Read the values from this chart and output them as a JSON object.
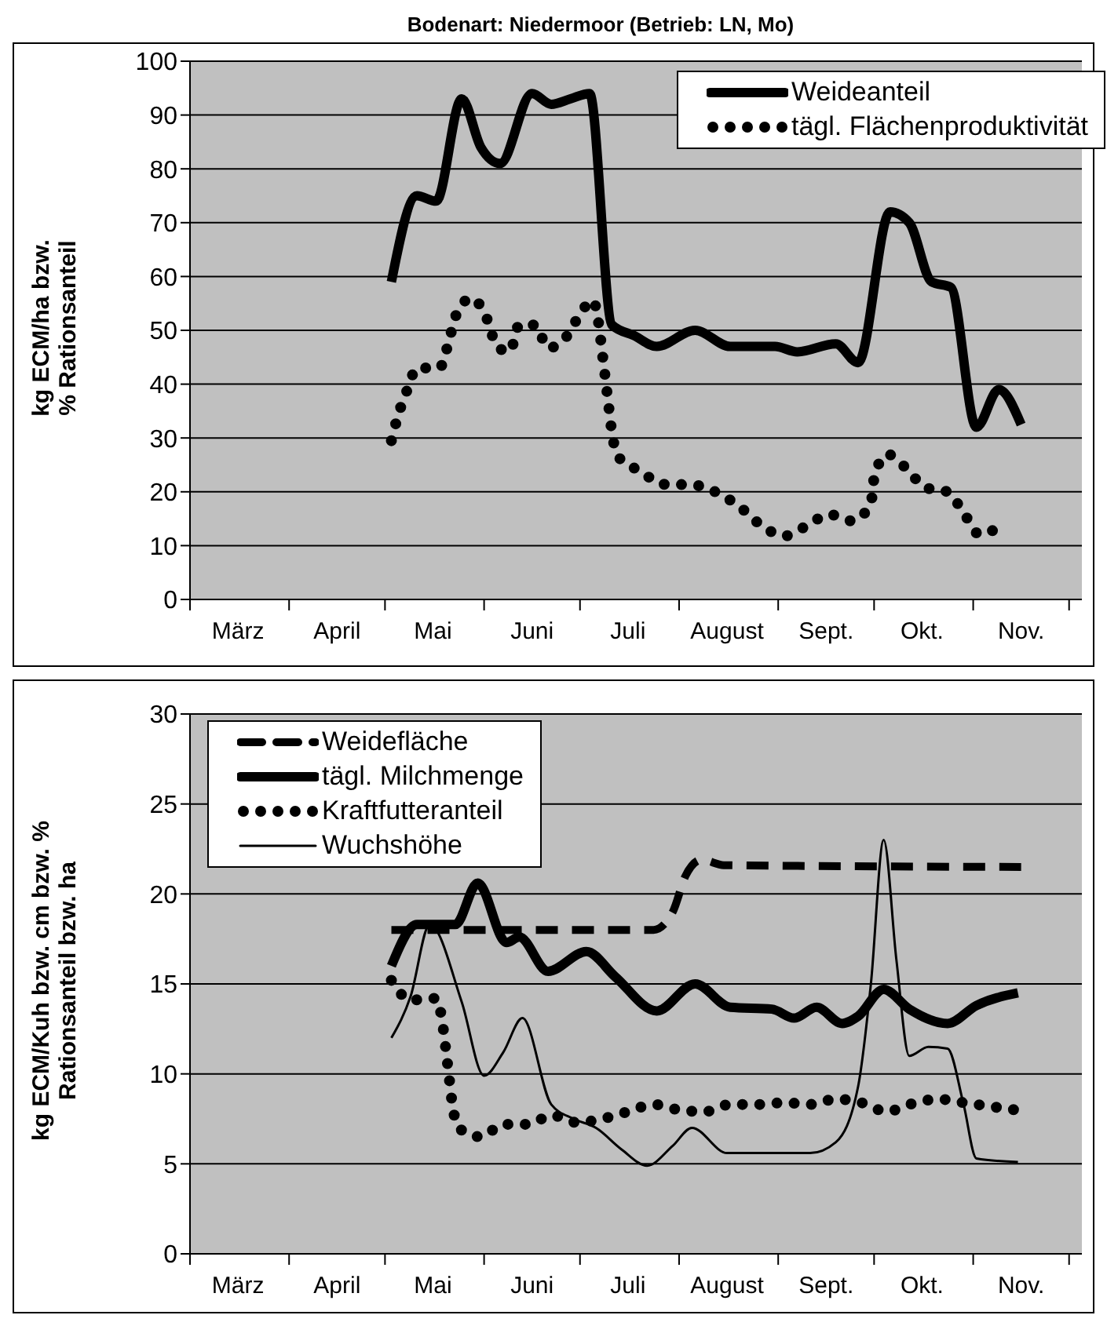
{
  "chart_data": [
    {
      "type": "line",
      "title": "Bodenart: Niedermoor (Betrieb: LN, Mo)",
      "ylabel": "kg ECM/ha bzw. % Rationsanteil",
      "xlim": [
        "--03-01",
        "--12-05"
      ],
      "xticks": [
        {
          "value": "--03-01",
          "label": null
        },
        {
          "value": "--03-16",
          "label": "März"
        },
        {
          "value": "--04-01",
          "label": null
        },
        {
          "value": "--04-16",
          "label": "April"
        },
        {
          "value": "--05-01",
          "label": null
        },
        {
          "value": "--05-16",
          "label": "Mai"
        },
        {
          "value": "--06-01",
          "label": null
        },
        {
          "value": "--06-16",
          "label": "Juni"
        },
        {
          "value": "--07-01",
          "label": null
        },
        {
          "value": "--07-16",
          "label": "Juli"
        },
        {
          "value": "--08-01",
          "label": null
        },
        {
          "value": "--08-16",
          "label": "August"
        },
        {
          "value": "--09-01",
          "label": null
        },
        {
          "value": "--09-16",
          "label": "Sept."
        },
        {
          "value": "--10-01",
          "label": null
        },
        {
          "value": "--10-16",
          "label": "Okt."
        },
        {
          "value": "--11-01",
          "label": null
        },
        {
          "value": "--11-16",
          "label": "Nov."
        },
        {
          "value": "--12-01",
          "label": null
        }
      ],
      "ylim": [
        0,
        100
      ],
      "yticks": [
        0,
        10,
        20,
        30,
        40,
        50,
        60,
        70,
        80,
        90,
        100
      ],
      "grid": "y",
      "legend": "top right",
      "series": [
        {
          "name": "Weideanteil",
          "color": "#000000",
          "line_style": "solid",
          "x": [
            "--05-03",
            "--05-11",
            "--05-17",
            "--05-25",
            "--05-31",
            "--06-06",
            "--06-16",
            "--06-22",
            "--06-28",
            "--07-04",
            "--07-11",
            "--07-18",
            "--07-25",
            "--08-06",
            "--08-17",
            "--08-31",
            "--09-07",
            "--09-19",
            "--09-26",
            "--10-06",
            "--10-12",
            "--10-19",
            "--10-25",
            "--11-02",
            "--11-09",
            "--11-16"
          ],
          "values": [
            59,
            75,
            74,
            93,
            84,
            81,
            94,
            92,
            93,
            94,
            51,
            49,
            47,
            50,
            47,
            47,
            46,
            47.5,
            44,
            72,
            70,
            59,
            58,
            32,
            39,
            32.5
          ]
        },
        {
          "name": "tägl. Flächenproduktivität",
          "color": "#000000",
          "line_style": "dotted",
          "x": [
            "--05-03",
            "--05-05",
            "--05-08",
            "--05-11",
            "--05-18",
            "--05-21",
            "--05-23",
            "--05-28",
            "--06-02",
            "--06-05",
            "--06-09",
            "--06-12",
            "--06-17",
            "--06-21",
            "--06-27",
            "--07-01",
            "--07-05",
            "--07-07",
            "--07-08",
            "--07-09",
            "--07-10",
            "--07-11",
            "--07-13",
            "--07-20",
            "--07-27",
            "--08-05",
            "--08-13",
            "--08-20",
            "--08-26",
            "--09-03",
            "--09-10",
            "--09-17",
            "--09-24",
            "--09-30",
            "--10-01",
            "--10-05",
            "--10-11",
            "--10-17",
            "--10-24",
            "--10-29",
            "--11-03",
            "--11-10"
          ],
          "values": [
            29.5,
            34,
            39,
            43,
            43,
            48,
            52.5,
            56,
            52,
            47,
            46,
            51,
            51,
            46.7,
            49,
            53,
            55.6,
            50.6,
            45.6,
            40.8,
            35.8,
            31,
            26.5,
            23.8,
            21.4,
            21.3,
            19.8,
            17.2,
            14.1,
            11.8,
            13.7,
            15.8,
            14.6,
            17.8,
            22.5,
            27,
            24.4,
            20.8,
            20,
            16.1,
            12.1,
            13.8
          ]
        }
      ]
    },
    {
      "type": "line",
      "ylabel": "kg ECM/Kuh bzw. cm bzw. % Rationsanteil bzw. ha",
      "xlim": [
        "--03-01",
        "--12-05"
      ],
      "xticks": [
        {
          "value": "--03-01",
          "label": null
        },
        {
          "value": "--03-16",
          "label": "März"
        },
        {
          "value": "--04-01",
          "label": null
        },
        {
          "value": "--04-16",
          "label": "April"
        },
        {
          "value": "--05-01",
          "label": null
        },
        {
          "value": "--05-16",
          "label": "Mai"
        },
        {
          "value": "--06-01",
          "label": null
        },
        {
          "value": "--06-16",
          "label": "Juni"
        },
        {
          "value": "--07-01",
          "label": null
        },
        {
          "value": "--07-16",
          "label": "Juli"
        },
        {
          "value": "--08-01",
          "label": null
        },
        {
          "value": "--08-16",
          "label": "August"
        },
        {
          "value": "--09-01",
          "label": null
        },
        {
          "value": "--09-16",
          "label": "Sept."
        },
        {
          "value": "--10-01",
          "label": null
        },
        {
          "value": "--10-16",
          "label": "Okt."
        },
        {
          "value": "--11-01",
          "label": null
        },
        {
          "value": "--11-16",
          "label": "Nov."
        },
        {
          "value": "--12-01",
          "label": null
        }
      ],
      "ylim": [
        0,
        30
      ],
      "yticks": [
        0,
        5,
        10,
        15,
        20,
        25,
        30
      ],
      "grid": "y",
      "legend": "top left",
      "series": [
        {
          "name": "Weidefläche",
          "color": "#000000",
          "line_style": "dashed",
          "x": [
            "--05-03",
            "--07-24",
            "--07-30",
            "--08-03",
            "--08-08",
            "--08-15",
            "--11-16"
          ],
          "values": [
            18,
            18,
            19,
            21,
            21.9,
            21.6,
            21.5
          ]
        },
        {
          "name": "tägl. Milchmenge",
          "color": "#000000",
          "line_style": "solid",
          "x": [
            "--05-03",
            "--05-11",
            "--05-23",
            "--05-30",
            "--06-08",
            "--06-12",
            "--06-21",
            "--07-03",
            "--07-12",
            "--07-25",
            "--08-06",
            "--08-17",
            "--08-30",
            "--09-06",
            "--09-13",
            "--09-21",
            "--09-26",
            "--10-04",
            "--10-12",
            "--10-24",
            "--11-02",
            "--11-15"
          ],
          "values": [
            16,
            18.3,
            18.3,
            20.6,
            17.3,
            17.6,
            15.7,
            16.8,
            15.4,
            13.5,
            15,
            13.7,
            13.6,
            13.1,
            13.7,
            12.8,
            13.2,
            14.7,
            13.6,
            12.8,
            13.8,
            14.5
          ]
        },
        {
          "name": "Kraftfutteranteil",
          "color": "#000000",
          "line_style": "dotted",
          "x": [
            "--05-03",
            "--05-09",
            "--05-17",
            "--05-19",
            "--05-20",
            "--05-21",
            "--05-22",
            "--05-24",
            "--05-31",
            "--06-07",
            "--06-15",
            "--06-22",
            "--06-30",
            "--07-08",
            "--07-16",
            "--07-24",
            "--08-01",
            "--08-09",
            "--08-17",
            "--08-26",
            "--09-03",
            "--09-11",
            "--09-19",
            "--09-27",
            "--10-05",
            "--10-12",
            "--10-21",
            "--10-29",
            "--11-06",
            "--11-14"
          ],
          "values": [
            15.2,
            14.1,
            14.2,
            12.8,
            11.4,
            9.9,
            8.4,
            7,
            6.5,
            7.2,
            7.2,
            7.7,
            7.3,
            7.5,
            7.9,
            8.3,
            8,
            7.9,
            8.3,
            8.3,
            8.4,
            8.3,
            8.6,
            8.4,
            7.9,
            8.3,
            8.6,
            8.4,
            8.2,
            8
          ]
        },
        {
          "name": "Wuchshöhe",
          "color": "#000000",
          "line_style": "solid",
          "x": [
            "--05-03",
            "--05-09",
            "--05-15",
            "--05-25",
            "--06-01",
            "--06-07",
            "--06-13",
            "--06-22",
            "--06-29",
            "--07-06",
            "--07-14",
            "--07-22",
            "--07-30",
            "--08-05",
            "--08-16",
            "--08-27",
            "--09-11",
            "--09-19",
            "--09-26",
            "--09-30",
            "--10-04",
            "--10-08",
            "--10-12",
            "--10-18",
            "--10-24",
            "--10-29",
            "--11-02",
            "--11-15"
          ],
          "values": [
            12,
            14.3,
            18.3,
            14,
            9.9,
            11.2,
            13.1,
            8.3,
            7.5,
            7,
            5.8,
            4.9,
            6,
            7,
            5.6,
            5.6,
            5.6,
            6.2,
            9.3,
            15,
            23,
            16.3,
            11,
            11.5,
            11.4,
            8.3,
            5.3,
            5.1
          ]
        }
      ]
    }
  ]
}
